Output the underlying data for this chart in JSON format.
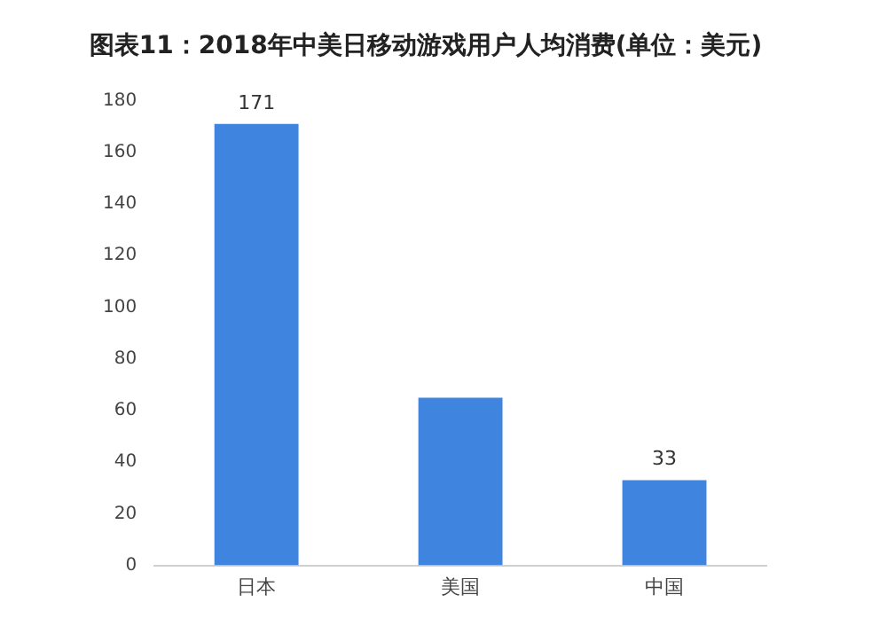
{
  "chart_data": {
    "type": "bar",
    "title": "图表11：2018年中美日移动游戏用户人均消费(单位：美元)",
    "categories": [
      "日本",
      "美国",
      "中国"
    ],
    "values": [
      171,
      65,
      33
    ],
    "value_labels": [
      "171",
      null,
      "33"
    ],
    "color": "#3f85e0",
    "ylim": [
      0,
      180
    ],
    "yticks": [
      0,
      20,
      40,
      60,
      80,
      100,
      120,
      140,
      160,
      180
    ],
    "grid": false,
    "legend": false
  }
}
